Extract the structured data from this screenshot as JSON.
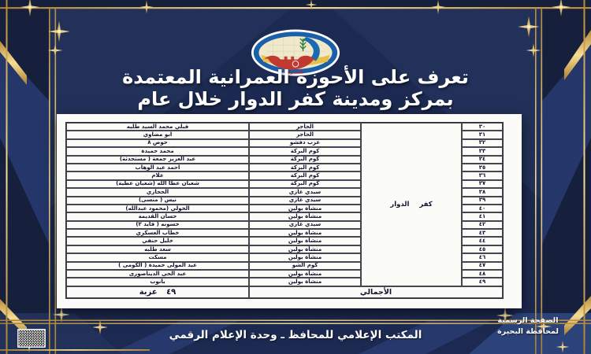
{
  "header": {
    "title_line1": "تعرف على الأحوزة العمرانية المعتمدة",
    "title_line2": "بمركز ومدينة كفر الدوار خلال عام",
    "logo_label": "البحيرة"
  },
  "table": {
    "district": "كفر الدوار",
    "rows": [
      {
        "no": "٣٠",
        "name": "قبلي محمد السيد طلبه",
        "unit": "الحاجر"
      },
      {
        "no": "٣١",
        "name": "ابو مضاوي",
        "unit": "الحاجر"
      },
      {
        "no": "٣٢",
        "name": "حوض ٨",
        "unit": "عزب دفشو"
      },
      {
        "no": "٣٣",
        "name": "محمد حميدة",
        "unit": "كوم البركة"
      },
      {
        "no": "٣٤",
        "name": "عبد العزيز جمعة ( مستحدثة)",
        "unit": "كوم البركة"
      },
      {
        "no": "٣٥",
        "name": "احمد عبد الوهاب",
        "unit": "كوم البركة"
      },
      {
        "no": "٣٦",
        "name": "علام",
        "unit": "كوم البركة"
      },
      {
        "no": "٣٧",
        "name": "شعبان عطا الله (شعبان عطية)",
        "unit": "كوم البركة"
      },
      {
        "no": "٣٨",
        "name": "الحجازي",
        "unit": "سيدي غازي"
      },
      {
        "no": "٣٩",
        "name": "نيس ( منسى)",
        "unit": "سيدي غازي"
      },
      {
        "no": "٤٠",
        "name": "الخولي (محمود عبدالله)",
        "unit": "منشأة بولين"
      },
      {
        "no": "٤١",
        "name": "حسان القديمة",
        "unit": "منشأة بولين"
      },
      {
        "no": "٤٢",
        "name": "حسونه ( فايد ٢)",
        "unit": "سيدي غازي"
      },
      {
        "no": "٤٣",
        "name": "خطاب العسكري",
        "unit": "منشأة بولين"
      },
      {
        "no": "٤٤",
        "name": "خليل حنفي",
        "unit": "منشأة بولين"
      },
      {
        "no": "٤٥",
        "name": "سعد طلبه",
        "unit": "منشأة بولين"
      },
      {
        "no": "٤٦",
        "name": "مسكت",
        "unit": "منشأة بولين"
      },
      {
        "no": "٤٧",
        "name": "عبد المولى حميدة ( الكومى )",
        "unit": "كوم الشو"
      },
      {
        "no": "٤٨",
        "name": "عبد الحى الديناصورى",
        "unit": "منشأة بولين"
      },
      {
        "no": "٤٩",
        "name": "بانوب",
        "unit": "منشأة بولين"
      }
    ],
    "footer": {
      "total_label": "الأجمالي",
      "total_value": "٤٩ عزبة"
    }
  },
  "footer_bar": {
    "text": "المكتب الإعلامي للمحافظ ـ وحدة الإعلام الرقمي"
  },
  "corner_caption": {
    "line1": "الصفحة الرسمية",
    "line2": "لمحافظة البحيرة"
  },
  "colors": {
    "background_navy": "#16203d",
    "panel_navy": "#1c2950",
    "royal_blue": "#2a3f74",
    "gold": "#d9ab55",
    "gold_light": "#f6dd94",
    "paper": "#fbfbf8",
    "table_text": "#121230",
    "title_text": "#ffffff",
    "logo_blue": "#1a5fa8",
    "logo_red": "#c13a31",
    "logo_green": "#2e7d32",
    "logo_yellow": "#e7c04a"
  }
}
